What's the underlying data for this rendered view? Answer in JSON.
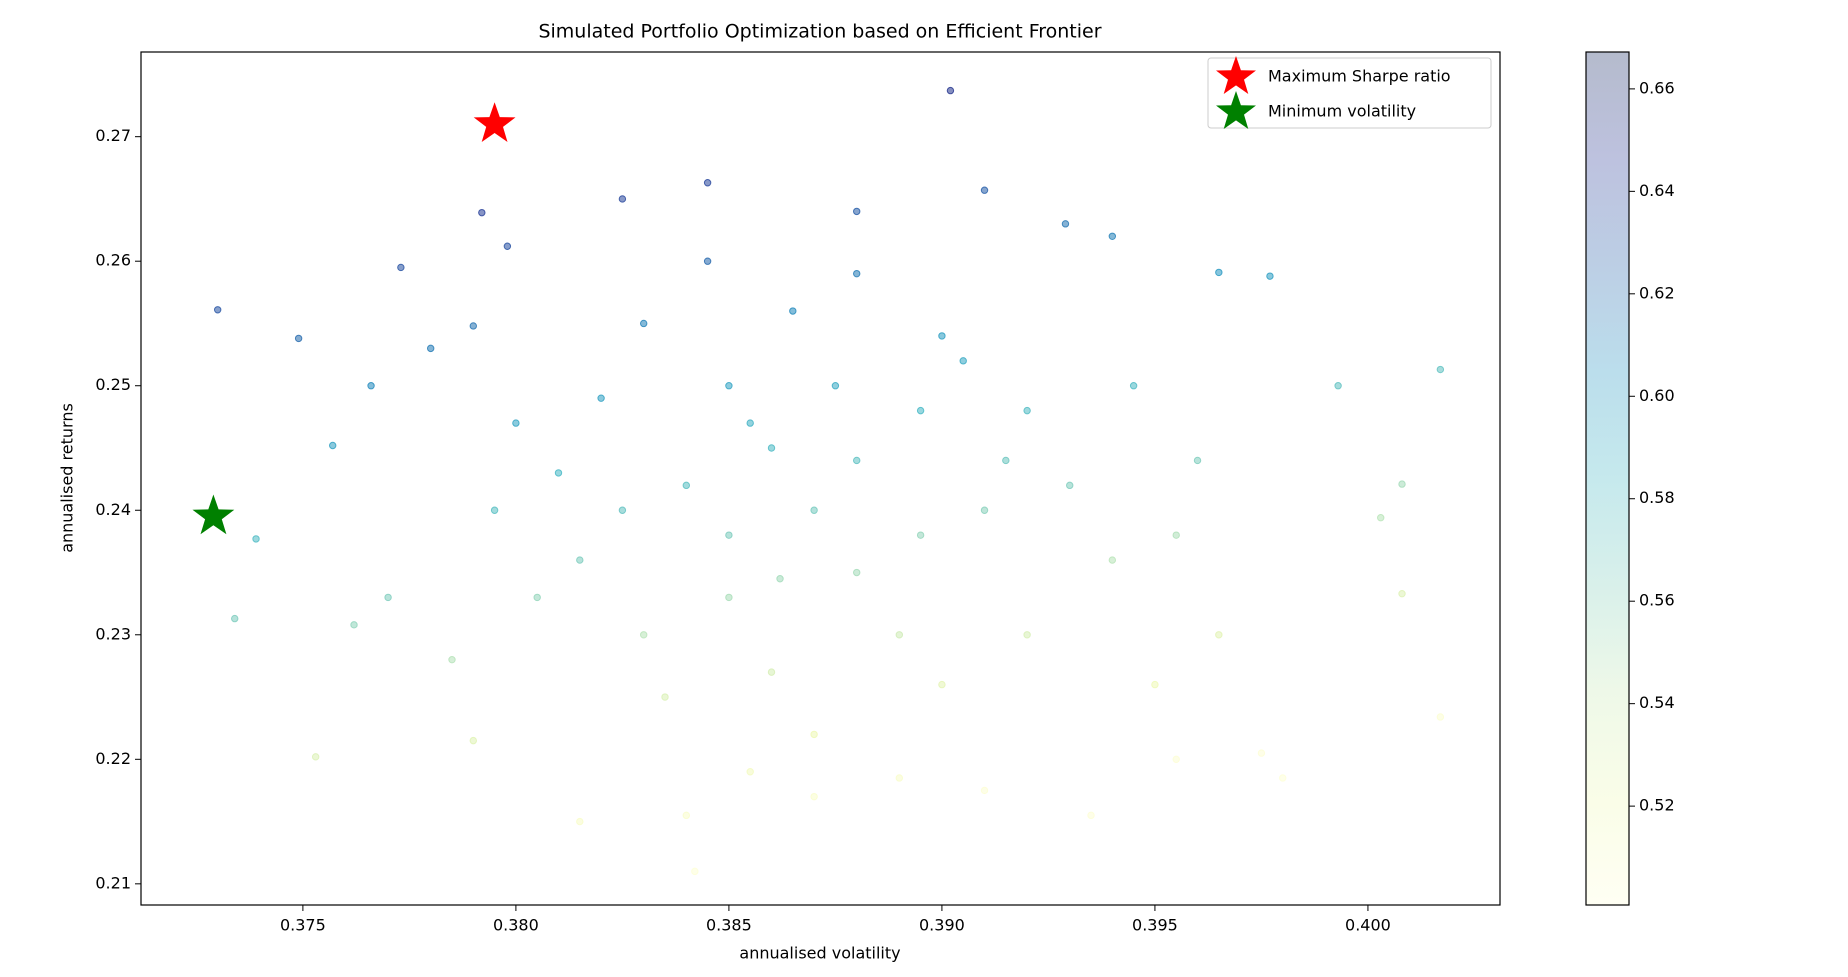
{
  "chart_data": {
    "type": "scatter",
    "title": "Simulated Portfolio Optimization based on Efficient Frontier",
    "x_label": "annualised volatility",
    "y_label": "annualised returns",
    "xlim": [
      0.3712,
      0.4031
    ],
    "ylim": [
      0.2083,
      0.2768
    ],
    "xticks": [
      0.375,
      {
        "value": 0.38,
        "label": "0.380"
      },
      0.385,
      {
        "value": 0.39,
        "label": "0.390"
      },
      0.395,
      {
        "value": 0.4,
        "label": "0.400"
      }
    ],
    "yticks": [
      0.21,
      0.22,
      0.23,
      0.24,
      0.25,
      0.26,
      0.27
    ],
    "colorbar_lim": [
      0.5007,
      0.6672
    ],
    "colorbar_ticks": [
      0.52,
      0.54,
      0.56,
      0.58,
      {
        "value": 0.6,
        "label": "0.60"
      },
      0.62,
      0.64,
      0.66
    ],
    "colormap": [
      "#ffffd9",
      "#edf8b1",
      "#c7e9b4",
      "#7fcdbb",
      "#41b6c4",
      "#1d91c0",
      "#225ea8",
      "#253494",
      "#081d58"
    ],
    "legend_position": "upper right",
    "points": {
      "x": [
        0.3902,
        0.373,
        0.3749,
        0.3773,
        0.3792,
        0.3798,
        0.3825,
        0.3845,
        0.388,
        0.391,
        0.3929,
        0.394,
        0.3965,
        0.3977,
        0.4017,
        0.3993,
        0.4008,
        0.4003,
        0.4008,
        0.4017,
        0.3842,
        0.3753,
        0.3734,
        0.3739,
        0.3757,
        0.3766,
        0.378,
        0.379,
        0.3762,
        0.377,
        0.3785,
        0.379,
        0.3815,
        0.384,
        0.3855,
        0.387,
        0.389,
        0.391,
        0.3935,
        0.3955,
        0.3975,
        0.398,
        0.385,
        0.386,
        0.387,
        0.388,
        0.389,
        0.384,
        0.383,
        0.3865,
        0.39,
        0.392,
        0.393,
        0.394,
        0.392,
        0.39,
        0.386,
        0.383,
        0.3815,
        0.381,
        0.382,
        0.38,
        0.3795,
        0.3805,
        0.385,
        0.388,
        0.3895,
        0.391,
        0.385,
        0.3875,
        0.3845,
        0.388,
        0.3905,
        0.3945,
        0.396,
        0.3955,
        0.3965,
        0.395,
        0.387,
        0.3835,
        0.3825,
        0.3862,
        0.3915,
        0.3855,
        0.3895
      ],
      "y": [
        0.2737,
        0.2561,
        0.2538,
        0.2595,
        0.2639,
        0.2612,
        0.265,
        0.2663,
        0.264,
        0.2657,
        0.263,
        0.262,
        0.2591,
        0.2588,
        0.2513,
        0.25,
        0.2421,
        0.2394,
        0.2333,
        0.2234,
        0.211,
        0.2202,
        0.2313,
        0.2377,
        0.2452,
        0.25,
        0.253,
        0.2548,
        0.2308,
        0.233,
        0.228,
        0.2215,
        0.215,
        0.2155,
        0.219,
        0.217,
        0.2185,
        0.2175,
        0.2155,
        0.22,
        0.2205,
        0.2185,
        0.25,
        0.245,
        0.24,
        0.235,
        0.23,
        0.242,
        0.255,
        0.256,
        0.254,
        0.248,
        0.242,
        0.236,
        0.23,
        0.226,
        0.227,
        0.23,
        0.236,
        0.243,
        0.249,
        0.247,
        0.24,
        0.233,
        0.238,
        0.244,
        0.238,
        0.24,
        0.233,
        0.25,
        0.26,
        0.259,
        0.252,
        0.25,
        0.244,
        0.238,
        0.23,
        0.226,
        0.222,
        0.225,
        0.24,
        0.2345,
        0.244,
        0.247,
        0.248
      ],
      "values": [
        0.649,
        0.632,
        0.622,
        0.633,
        0.642,
        0.634,
        0.639,
        0.639,
        0.628,
        0.627,
        0.617,
        0.613,
        0.602,
        0.599,
        0.575,
        0.575,
        0.553,
        0.547,
        0.531,
        0.505,
        0.502,
        0.532,
        0.565,
        0.581,
        0.598,
        0.609,
        0.615,
        0.618,
        0.559,
        0.564,
        0.548,
        0.53,
        0.51,
        0.508,
        0.515,
        0.508,
        0.509,
        0.504,
        0.503,
        0.504,
        0.503,
        0.502,
        0.596,
        0.582,
        0.567,
        0.553,
        0.539,
        0.577,
        0.612,
        0.609,
        0.599,
        0.58,
        0.564,
        0.547,
        0.534,
        0.527,
        0.535,
        0.547,
        0.565,
        0.584,
        0.598,
        0.596,
        0.578,
        0.558,
        0.565,
        0.576,
        0.558,
        0.561,
        0.552,
        0.592,
        0.623,
        0.615,
        0.593,
        0.582,
        0.564,
        0.55,
        0.528,
        0.52,
        0.521,
        0.533,
        0.574,
        0.554,
        0.571,
        0.588,
        0.584
      ]
    },
    "series": [
      {
        "name": "Maximum Sharpe ratio",
        "color": "#ff0000",
        "x": 0.3795,
        "y": 0.271
      },
      {
        "name": "Minimum volatility",
        "color": "#008000",
        "x": 0.3729,
        "y": 0.2395
      }
    ]
  }
}
